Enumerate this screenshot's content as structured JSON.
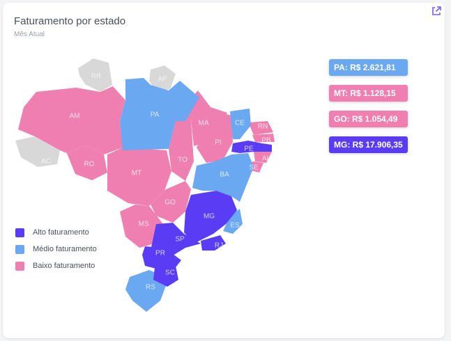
{
  "header": {
    "title": "Faturamento por estado",
    "subtitle": "Mês Atual",
    "external_link_icon": "external-link-icon"
  },
  "colors": {
    "alto": "#5b3cf5",
    "medio": "#6aa9f2",
    "baixo": "#ee7fb0",
    "sem_dados": "#d8d8d8"
  },
  "legend": [
    {
      "label": "Alto faturamento",
      "level": "alto"
    },
    {
      "label": "Médio faturamento",
      "level": "medio"
    },
    {
      "label": "Baixo faturamento",
      "level": "baixo"
    }
  ],
  "highlights": [
    {
      "text": "PA: R$ 2.621,81",
      "level": "medio"
    },
    {
      "text": "MT: R$ 1.128,15",
      "level": "baixo"
    },
    {
      "text": "GO: R$ 1.054,49",
      "level": "baixo"
    },
    {
      "text": "MG: R$ 17.906,35",
      "level": "alto"
    }
  ],
  "states": {
    "RR": "RR",
    "AP": "AP",
    "AM": "AM",
    "PA": "PA",
    "AC": "AC",
    "RO": "RO",
    "MT": "MT",
    "TO": "TO",
    "MA": "MA",
    "PI": "PI",
    "CE": "CE",
    "RN": "RN",
    "PB": "PB",
    "PE": "PE",
    "AL": "AL",
    "SE": "SE",
    "BA": "BA",
    "GO": "GO",
    "MS": "MS",
    "MG": "MG",
    "ES": "ES",
    "SP": "SP",
    "RJ": "RJ",
    "PR": "PR",
    "SC": "SC",
    "RS": "RS"
  }
}
